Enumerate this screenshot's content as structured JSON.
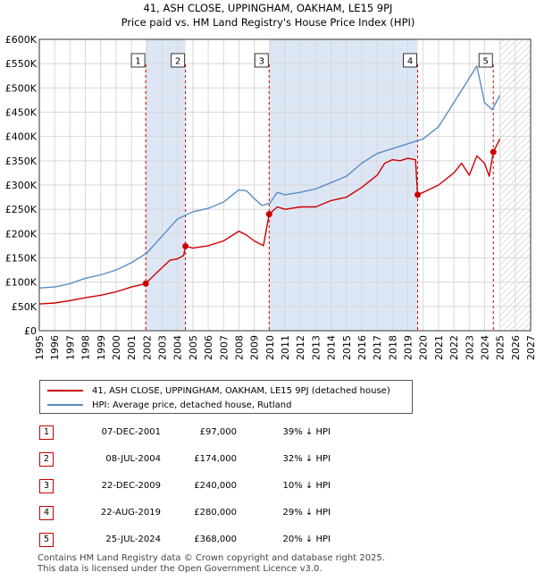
{
  "header": {
    "title": "41, ASH CLOSE, UPPINGHAM, OAKHAM, LE15 9PJ",
    "subtitle": "Price paid vs. HM Land Registry's House Price Index (HPI)"
  },
  "colors": {
    "property_line": "#cc0000",
    "hpi_line": "#5b8dc4",
    "shade": "#dde6f5",
    "grid": "#d8d8d8"
  },
  "legend": {
    "property_label": "41, ASH CLOSE, UPPINGHAM, OAKHAM, LE15 9PJ (detached house)",
    "hpi_label": "HPI: Average price, detached house, Rutland"
  },
  "sales": [
    {
      "num": "1",
      "date": "07-DEC-2001",
      "price": "£97,000",
      "hpi": "39% ↓ HPI"
    },
    {
      "num": "2",
      "date": "08-JUL-2004",
      "price": "£174,000",
      "hpi": "32% ↓ HPI"
    },
    {
      "num": "3",
      "date": "22-DEC-2009",
      "price": "£240,000",
      "hpi": "10% ↓ HPI"
    },
    {
      "num": "4",
      "date": "22-AUG-2019",
      "price": "£280,000",
      "hpi": "29% ↓ HPI"
    },
    {
      "num": "5",
      "date": "25-JUL-2024",
      "price": "£368,000",
      "hpi": "20% ↓ HPI"
    }
  ],
  "footer": {
    "line1": "Contains HM Land Registry data © Crown copyright and database right 2025.",
    "line2": "This data is licensed under the Open Government Licence v3.0."
  },
  "chart_data": {
    "type": "line",
    "title": "41, ASH CLOSE, UPPINGHAM, OAKHAM, LE15 9PJ",
    "subtitle": "Price paid vs. HM Land Registry's House Price Index (HPI)",
    "xlim": [
      1995,
      2027
    ],
    "ylim": [
      0,
      600000
    ],
    "x_ticks": [
      1995,
      1996,
      1997,
      1998,
      1999,
      2000,
      2001,
      2002,
      2003,
      2004,
      2005,
      2006,
      2007,
      2008,
      2009,
      2010,
      2011,
      2012,
      2013,
      2014,
      2015,
      2016,
      2017,
      2018,
      2019,
      2020,
      2021,
      2022,
      2023,
      2024,
      2025,
      2026,
      2027
    ],
    "y_ticks": [
      0,
      50000,
      100000,
      150000,
      200000,
      250000,
      300000,
      350000,
      400000,
      450000,
      500000,
      550000,
      600000
    ],
    "y_tick_labels": [
      "£0",
      "£50K",
      "£100K",
      "£150K",
      "£200K",
      "£250K",
      "£300K",
      "£350K",
      "£400K",
      "£450K",
      "£500K",
      "£550K",
      "£600K"
    ],
    "shaded_spans": [
      [
        2001.93,
        2004.52
      ],
      [
        2009.97,
        2019.64
      ]
    ],
    "future_hatch_from": 2025.0,
    "series": [
      {
        "name": "41, ASH CLOSE, UPPINGHAM, OAKHAM, LE15 9PJ (detached house)",
        "x": [
          1995,
          1996,
          1997,
          1998,
          1999,
          2000,
          2001,
          2001.93,
          2002.5,
          2003,
          2003.5,
          2004,
          2004.4,
          2004.52,
          2005,
          2006,
          2007,
          2008,
          2008.5,
          2009,
          2009.6,
          2009.97,
          2010.5,
          2011,
          2012,
          2013,
          2014,
          2015,
          2016,
          2017,
          2017.5,
          2018,
          2018.5,
          2019,
          2019.5,
          2019.64,
          2020,
          2021,
          2022,
          2022.5,
          2023,
          2023.5,
          2024,
          2024.3,
          2024.57,
          2025
        ],
        "values": [
          55000,
          57000,
          62000,
          68000,
          73000,
          80000,
          90000,
          97000,
          115000,
          130000,
          145000,
          148000,
          155000,
          174000,
          170000,
          175000,
          185000,
          205000,
          197000,
          185000,
          175000,
          240000,
          255000,
          250000,
          255000,
          255000,
          268000,
          275000,
          295000,
          320000,
          345000,
          352000,
          350000,
          355000,
          352000,
          280000,
          285000,
          300000,
          325000,
          345000,
          320000,
          360000,
          345000,
          318000,
          368000,
          395000
        ]
      },
      {
        "name": "HPI: Average price, detached house, Rutland",
        "x": [
          1995,
          1996,
          1997,
          1998,
          1999,
          2000,
          2001,
          2002,
          2003,
          2004,
          2005,
          2006,
          2007,
          2008,
          2008.5,
          2009,
          2009.5,
          2010,
          2010.5,
          2011,
          2012,
          2013,
          2014,
          2015,
          2016,
          2017,
          2018,
          2019,
          2020,
          2021,
          2021.5,
          2022,
          2022.5,
          2023,
          2023.5,
          2024,
          2024.5,
          2025
        ],
        "values": [
          88000,
          90000,
          97000,
          108000,
          115000,
          125000,
          140000,
          160000,
          195000,
          230000,
          245000,
          252000,
          265000,
          290000,
          288000,
          272000,
          258000,
          262000,
          285000,
          280000,
          285000,
          292000,
          305000,
          318000,
          345000,
          365000,
          375000,
          385000,
          395000,
          420000,
          445000,
          470000,
          495000,
          520000,
          545000,
          470000,
          455000,
          485000
        ]
      }
    ],
    "sale_markers": [
      {
        "label": "1",
        "x": 2001.93,
        "y": 97000
      },
      {
        "label": "2",
        "x": 2004.52,
        "y": 174000
      },
      {
        "label": "3",
        "x": 2009.97,
        "y": 240000
      },
      {
        "label": "4",
        "x": 2019.64,
        "y": 280000
      },
      {
        "label": "5",
        "x": 2024.57,
        "y": 368000
      }
    ]
  }
}
